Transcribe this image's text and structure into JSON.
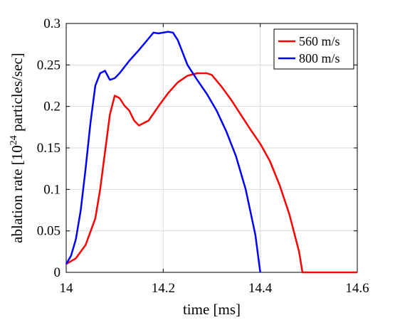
{
  "chart_data": {
    "type": "line",
    "title": "",
    "xlabel": "time [ms]",
    "ylabel": "ablation rate [10^24 particles/sec]",
    "ylabel_parts": {
      "before": "ablation rate [10",
      "sup": "24",
      "after": " particles/sec]"
    },
    "xlim": [
      14,
      14.6
    ],
    "ylim": [
      0,
      0.3
    ],
    "xticks": [
      14,
      14.2,
      14.4,
      14.6
    ],
    "xtick_labels": [
      "14",
      "14.2",
      "14.4",
      "14.6"
    ],
    "yticks": [
      0,
      0.05,
      0.1,
      0.15,
      0.2,
      0.25,
      0.3
    ],
    "ytick_labels": [
      "0",
      "0.05",
      "0.1",
      "0.15",
      "0.2",
      "0.25",
      "0.3"
    ],
    "grid": true,
    "legend_position": "top-right",
    "series": [
      {
        "name": "560 m/s",
        "color": "#ff0000",
        "points": [
          [
            14.0,
            0.01
          ],
          [
            14.02,
            0.017
          ],
          [
            14.04,
            0.033
          ],
          [
            14.06,
            0.065
          ],
          [
            14.07,
            0.1
          ],
          [
            14.08,
            0.145
          ],
          [
            14.09,
            0.19
          ],
          [
            14.1,
            0.213
          ],
          [
            14.11,
            0.21
          ],
          [
            14.12,
            0.201
          ],
          [
            14.13,
            0.195
          ],
          [
            14.14,
            0.183
          ],
          [
            14.15,
            0.177
          ],
          [
            14.17,
            0.183
          ],
          [
            14.19,
            0.2
          ],
          [
            14.21,
            0.216
          ],
          [
            14.23,
            0.229
          ],
          [
            14.25,
            0.237
          ],
          [
            14.27,
            0.24
          ],
          [
            14.29,
            0.24
          ],
          [
            14.3,
            0.238
          ],
          [
            14.32,
            0.224
          ],
          [
            14.34,
            0.208
          ],
          [
            14.36,
            0.19
          ],
          [
            14.38,
            0.172
          ],
          [
            14.4,
            0.155
          ],
          [
            14.42,
            0.134
          ],
          [
            14.44,
            0.105
          ],
          [
            14.46,
            0.07
          ],
          [
            14.48,
            0.025
          ],
          [
            14.487,
            0.0
          ],
          [
            14.6,
            0.0
          ]
        ]
      },
      {
        "name": "800 m/s",
        "color": "#0000ff",
        "points": [
          [
            14.0,
            0.01
          ],
          [
            14.01,
            0.02
          ],
          [
            14.02,
            0.04
          ],
          [
            14.03,
            0.075
          ],
          [
            14.04,
            0.125
          ],
          [
            14.05,
            0.18
          ],
          [
            14.06,
            0.225
          ],
          [
            14.07,
            0.24
          ],
          [
            14.08,
            0.243
          ],
          [
            14.09,
            0.232
          ],
          [
            14.1,
            0.234
          ],
          [
            14.11,
            0.24
          ],
          [
            14.13,
            0.255
          ],
          [
            14.15,
            0.268
          ],
          [
            14.17,
            0.282
          ],
          [
            14.18,
            0.289
          ],
          [
            14.19,
            0.288
          ],
          [
            14.21,
            0.29
          ],
          [
            14.22,
            0.289
          ],
          [
            14.23,
            0.28
          ],
          [
            14.24,
            0.265
          ],
          [
            14.25,
            0.25
          ],
          [
            14.27,
            0.232
          ],
          [
            14.29,
            0.215
          ],
          [
            14.31,
            0.195
          ],
          [
            14.33,
            0.17
          ],
          [
            14.35,
            0.14
          ],
          [
            14.37,
            0.1
          ],
          [
            14.39,
            0.045
          ],
          [
            14.4,
            0.0
          ]
        ]
      }
    ]
  }
}
